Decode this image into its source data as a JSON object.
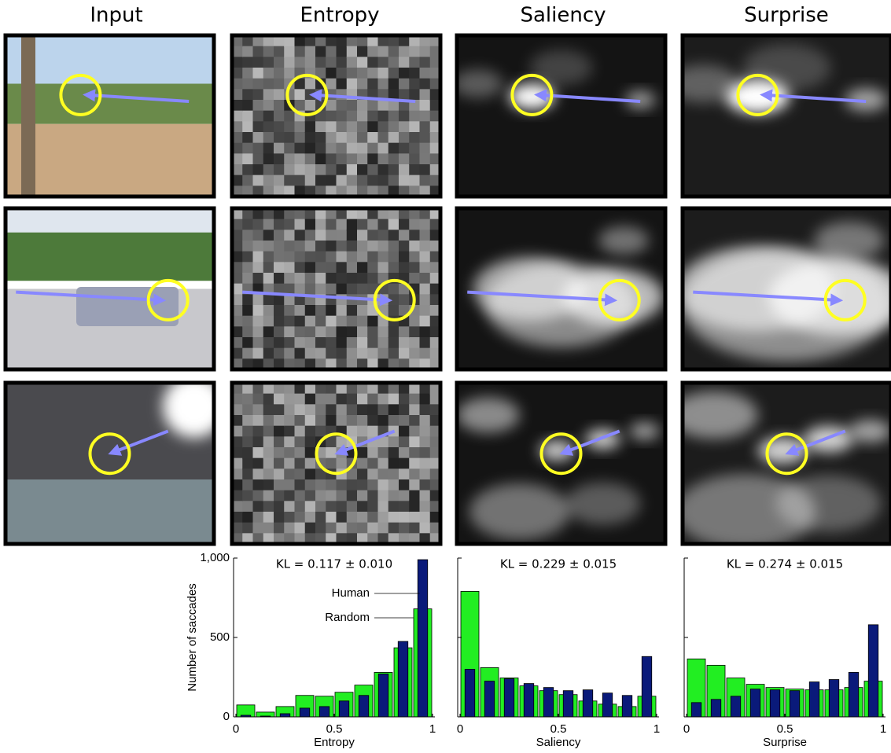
{
  "columns": [
    "Input",
    "Entropy",
    "Saliency",
    "Surprise"
  ],
  "chart_data": [
    {
      "type": "histogram",
      "annotation": "KL = 0.117 ± 0.010",
      "xlabel": "Entropy",
      "ylabel": "Number of saccades",
      "bins": [
        0,
        0.1,
        0.2,
        0.3,
        0.4,
        0.5,
        0.6,
        0.7,
        0.8,
        0.9,
        1
      ],
      "series": [
        {
          "name": "Random",
          "color": "#22ee22",
          "values": [
            75,
            30,
            65,
            135,
            130,
            155,
            200,
            280,
            435,
            680
          ]
        },
        {
          "name": "Human",
          "color": "#0a1a7a",
          "values": [
            10,
            5,
            20,
            55,
            65,
            100,
            135,
            270,
            475,
            990
          ]
        }
      ],
      "xlim": [
        0,
        1
      ],
      "xticks": [
        0,
        0.5,
        1
      ],
      "ylim": [
        0,
        1000
      ],
      "yticks": [
        0,
        500,
        {
          "value": 1000,
          "label": "1,000"
        }
      ],
      "ytick_labels": true,
      "legend": true
    },
    {
      "type": "histogram",
      "annotation": "KL = 0.229 ± 0.015",
      "xlabel": "Saliency",
      "bins": [
        0,
        0.1,
        0.2,
        0.3,
        0.4,
        0.5,
        0.6,
        0.7,
        0.8,
        0.9,
        1
      ],
      "series": [
        {
          "name": "Random",
          "color": "#22ee22",
          "values": [
            790,
            310,
            245,
            195,
            165,
            140,
            100,
            80,
            65,
            130
          ]
        },
        {
          "name": "Human",
          "color": "#0a1a7a",
          "values": [
            300,
            225,
            240,
            210,
            185,
            165,
            170,
            150,
            135,
            380
          ]
        }
      ],
      "xlim": [
        0,
        1
      ],
      "xticks": [
        0,
        0.5,
        1
      ],
      "ylim": [
        0,
        1000
      ],
      "yticks": [
        0,
        500,
        1000
      ],
      "ytick_labels": false,
      "legend": false
    },
    {
      "type": "histogram",
      "annotation": "KL = 0.274 ± 0.015",
      "xlabel": "Surprise",
      "bins": [
        0,
        0.1,
        0.2,
        0.3,
        0.4,
        0.5,
        0.6,
        0.7,
        0.8,
        0.9,
        1
      ],
      "series": [
        {
          "name": "Random",
          "color": "#22ee22",
          "values": [
            365,
            325,
            245,
            205,
            185,
            175,
            170,
            170,
            185,
            225
          ]
        },
        {
          "name": "Human",
          "color": "#0a1a7a",
          "values": [
            90,
            110,
            130,
            175,
            170,
            165,
            220,
            235,
            280,
            580
          ]
        }
      ],
      "xlim": [
        0,
        1
      ],
      "xticks": [
        0,
        0.5,
        1
      ],
      "ylim": [
        0,
        1000
      ],
      "yticks": [
        0,
        500,
        1000
      ],
      "ytick_labels": false,
      "legend": false
    }
  ]
}
